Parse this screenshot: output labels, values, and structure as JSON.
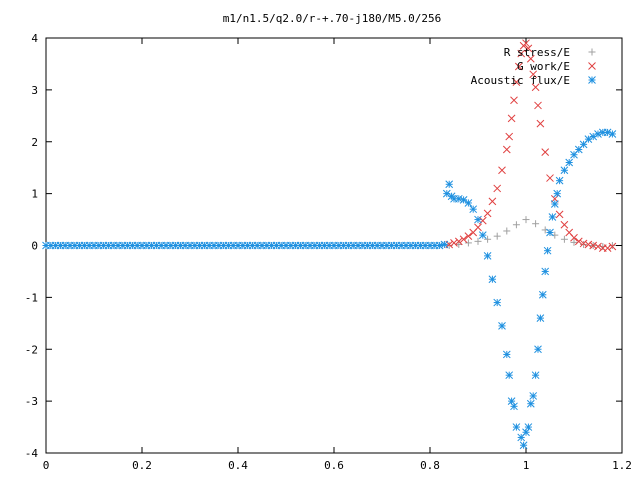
{
  "chart_data": {
    "type": "scatter",
    "title": "m1/n1.5/q2.0/r-+.70-j180/M5.0/256",
    "xlabel": "",
    "ylabel": "",
    "xlim": [
      0,
      1.2
    ],
    "ylim": [
      -4,
      4
    ],
    "xticks": [
      "0",
      "0.2",
      "0.4",
      "0.6",
      "0.8",
      "1",
      "1.2"
    ],
    "yticks": [
      "-4",
      "-3",
      "-2",
      "-1",
      "0",
      "1",
      "2",
      "3",
      "4"
    ],
    "grid": false,
    "legend": "top-right",
    "series": [
      {
        "name": "R stress/E",
        "marker": "+",
        "color": "#a0a0a0",
        "x": [
          0.84,
          0.86,
          0.88,
          0.9,
          0.92,
          0.94,
          0.96,
          0.98,
          1.0,
          1.02,
          1.04,
          1.06,
          1.08,
          1.1,
          1.12,
          1.14,
          1.16,
          1.18
        ],
        "y": [
          0.0,
          0.02,
          0.05,
          0.08,
          0.12,
          0.18,
          0.28,
          0.4,
          0.5,
          0.42,
          0.3,
          0.2,
          0.12,
          0.06,
          0.02,
          0.0,
          -0.02,
          0.0
        ]
      },
      {
        "name": "G work/E",
        "marker": "x",
        "color": "#e04040",
        "x": [
          0.84,
          0.85,
          0.86,
          0.87,
          0.88,
          0.89,
          0.9,
          0.91,
          0.92,
          0.93,
          0.94,
          0.95,
          0.96,
          0.965,
          0.97,
          0.975,
          0.98,
          0.985,
          0.99,
          0.995,
          1.0,
          1.005,
          1.01,
          1.015,
          1.02,
          1.025,
          1.03,
          1.04,
          1.05,
          1.06,
          1.07,
          1.08,
          1.09,
          1.1,
          1.11,
          1.12,
          1.13,
          1.14,
          1.15,
          1.16,
          1.17,
          1.18
        ],
        "y": [
          0.02,
          0.05,
          0.08,
          0.12,
          0.18,
          0.25,
          0.35,
          0.48,
          0.62,
          0.85,
          1.1,
          1.45,
          1.85,
          2.1,
          2.45,
          2.8,
          3.15,
          3.45,
          3.7,
          3.85,
          3.9,
          3.8,
          3.6,
          3.3,
          3.05,
          2.7,
          2.35,
          1.8,
          1.3,
          0.9,
          0.6,
          0.4,
          0.25,
          0.15,
          0.08,
          0.04,
          0.02,
          0.0,
          -0.02,
          -0.05,
          -0.05,
          -0.02
        ]
      },
      {
        "name": "Acoustic flux/E",
        "marker": "*",
        "color": "#1e90e0",
        "x": [
          0.0,
          0.01,
          0.02,
          0.03,
          0.04,
          0.05,
          0.06,
          0.07,
          0.08,
          0.09,
          0.1,
          0.11,
          0.12,
          0.13,
          0.14,
          0.15,
          0.16,
          0.17,
          0.18,
          0.19,
          0.2,
          0.21,
          0.22,
          0.23,
          0.24,
          0.25,
          0.26,
          0.27,
          0.28,
          0.29,
          0.3,
          0.31,
          0.32,
          0.33,
          0.34,
          0.35,
          0.36,
          0.37,
          0.38,
          0.39,
          0.4,
          0.41,
          0.42,
          0.43,
          0.44,
          0.45,
          0.46,
          0.47,
          0.48,
          0.49,
          0.5,
          0.51,
          0.52,
          0.53,
          0.54,
          0.55,
          0.56,
          0.57,
          0.58,
          0.59,
          0.6,
          0.61,
          0.62,
          0.63,
          0.64,
          0.65,
          0.66,
          0.67,
          0.68,
          0.69,
          0.7,
          0.71,
          0.72,
          0.73,
          0.74,
          0.75,
          0.76,
          0.77,
          0.78,
          0.79,
          0.8,
          0.81,
          0.82,
          0.83,
          0.835,
          0.84,
          0.845,
          0.85,
          0.86,
          0.87,
          0.88,
          0.89,
          0.9,
          0.91,
          0.92,
          0.93,
          0.94,
          0.95,
          0.96,
          0.965,
          0.97,
          0.975,
          0.98,
          0.99,
          0.995,
          1.0,
          1.005,
          1.01,
          1.015,
          1.02,
          1.025,
          1.03,
          1.035,
          1.04,
          1.045,
          1.05,
          1.055,
          1.06,
          1.065,
          1.07,
          1.08,
          1.09,
          1.1,
          1.11,
          1.12,
          1.13,
          1.14,
          1.15,
          1.16,
          1.17,
          1.18
        ],
        "y": [
          0,
          0,
          0,
          0,
          0,
          0,
          0,
          0,
          0,
          0,
          0,
          0,
          0,
          0,
          0,
          0,
          0,
          0,
          0,
          0,
          0,
          0,
          0,
          0,
          0,
          0,
          0,
          0,
          0,
          0,
          0,
          0,
          0,
          0,
          0,
          0,
          0,
          0,
          0,
          0,
          0,
          0,
          0,
          0,
          0,
          0,
          0,
          0,
          0,
          0,
          0,
          0,
          0,
          0,
          0,
          0,
          0,
          0,
          0,
          0,
          0,
          0,
          0,
          0,
          0,
          0,
          0,
          0,
          0,
          0,
          0,
          0,
          0,
          0,
          0,
          0,
          0,
          0,
          0,
          0,
          0,
          0,
          0,
          0.02,
          1.0,
          1.18,
          0.95,
          0.9,
          0.9,
          0.88,
          0.82,
          0.7,
          0.5,
          0.2,
          -0.2,
          -0.65,
          -1.1,
          -1.55,
          -2.1,
          -2.5,
          -3.0,
          -3.1,
          -3.5,
          -3.7,
          -3.85,
          -3.6,
          -3.5,
          -3.05,
          -2.9,
          -2.5,
          -2.0,
          -1.4,
          -0.95,
          -0.5,
          -0.1,
          0.25,
          0.55,
          0.8,
          1.0,
          1.25,
          1.45,
          1.6,
          1.75,
          1.85,
          1.95,
          2.05,
          2.1,
          2.15,
          2.18,
          2.18,
          2.15
        ]
      }
    ]
  }
}
